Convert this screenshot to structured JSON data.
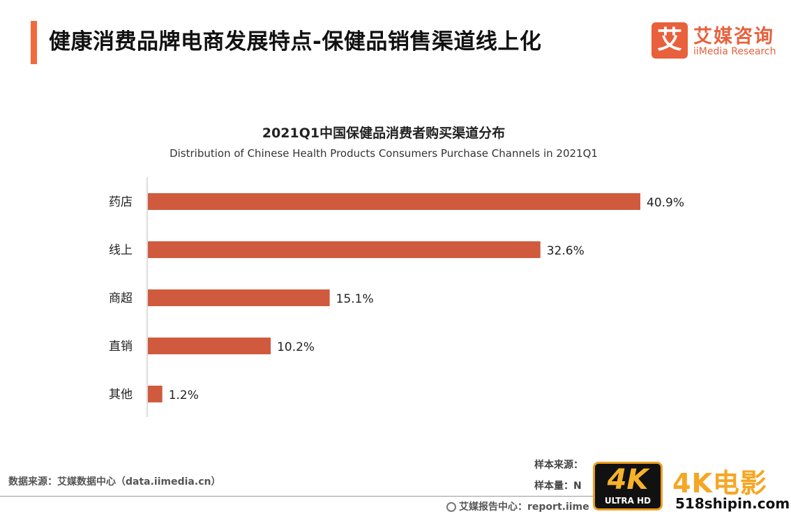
{
  "header": {
    "title": "健康消费品牌电商发展特点-保健品销售渠道线上化"
  },
  "logo": {
    "mark": "艾",
    "cn": "艾媒咨询",
    "en": "iiMedia Research"
  },
  "colors": {
    "accent": "#f26a3c",
    "bar": "#d05a3d",
    "brand": "#e8603c"
  },
  "chart_data": {
    "type": "bar",
    "orientation": "horizontal",
    "title": "2021Q1中国保健品消费者购买渠道分布",
    "subtitle": "Distribution of Chinese Health Products Consumers Purchase Channels in 2021Q1",
    "categories": [
      "药店",
      "线上",
      "商超",
      "直销",
      "其他"
    ],
    "values": [
      40.9,
      32.6,
      15.1,
      10.2,
      1.2
    ],
    "value_labels": [
      "40.9%",
      "32.6%",
      "15.1%",
      "10.2%",
      "1.2%"
    ],
    "unit": "%",
    "xlim": [
      0,
      40.9
    ],
    "grid": false,
    "legend": "none"
  },
  "footer": {
    "source": "数据来源：艾媒数据中心（data.iimedia.cn）",
    "sample_source": "样本来源：",
    "sample_size": "样本量：N",
    "report_center": "艾媒报告中心：report.iime"
  },
  "watermark": {
    "badge_main": "4K",
    "badge_sub": "ULTRA HD",
    "text": "4K电影",
    "url": "518shipin.com"
  }
}
